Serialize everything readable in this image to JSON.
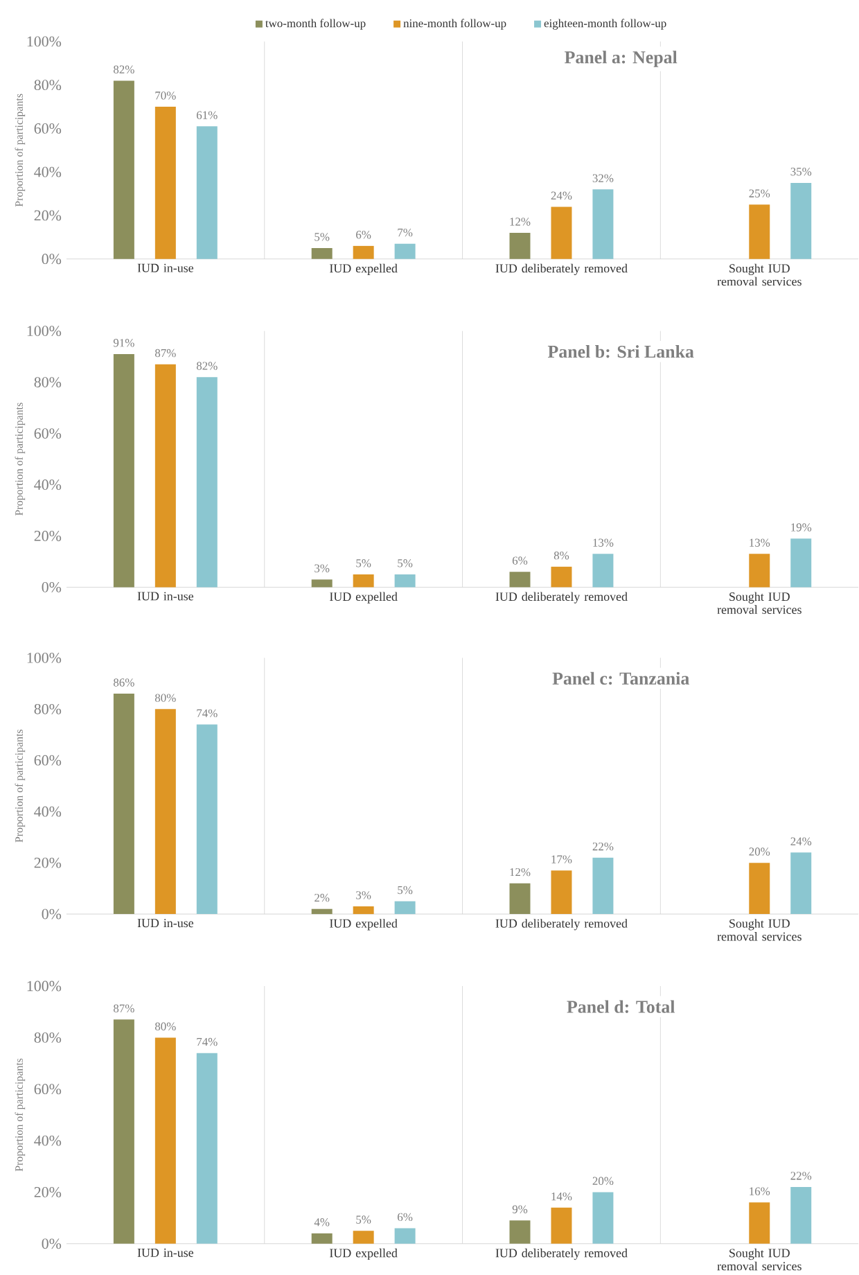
{
  "chart_data": [
    {
      "type": "bar",
      "title": "Panel a: Nepal",
      "ylabel": "Proportion of participants",
      "legend": "top",
      "categories": [
        "IUD in-use",
        "IUD expelled",
        "IUD deliberately removed",
        "Sought IUD removal services"
      ],
      "ylim": [
        0,
        100
      ],
      "yticks": [
        {
          "value": 0,
          "label": "0%"
        },
        {
          "value": 20,
          "label": "20%"
        },
        {
          "value": 40,
          "label": "40%"
        },
        {
          "value": 60,
          "label": "60%"
        },
        {
          "value": 80,
          "label": "80%"
        },
        {
          "value": 100,
          "label": "100%"
        }
      ],
      "series": [
        {
          "name": "two-month follow-up",
          "color": "#8c8f5c",
          "values": [
            82,
            5,
            12,
            null
          ],
          "value_labels": [
            "82%",
            "5%",
            "12%",
            null
          ]
        },
        {
          "name": "nine-month follow-up",
          "color": "#de9625",
          "values": [
            70,
            6,
            24,
            25
          ],
          "value_labels": [
            "70%",
            "6%",
            "24%",
            "25%"
          ]
        },
        {
          "name": "eighteen-month follow-up",
          "color": "#8bc6d0",
          "values": [
            61,
            7,
            32,
            35
          ],
          "value_labels": [
            "61%",
            "7%",
            "32%",
            "35%"
          ]
        }
      ]
    },
    {
      "type": "bar",
      "title": "Panel b: Sri Lanka",
      "ylabel": "Proportion of participants",
      "categories": [
        "IUD in-use",
        "IUD expelled",
        "IUD deliberately removed",
        "Sought IUD removal services"
      ],
      "ylim": [
        0,
        100
      ],
      "yticks": [
        {
          "value": 0,
          "label": "0%"
        },
        {
          "value": 20,
          "label": "20%"
        },
        {
          "value": 40,
          "label": "40%"
        },
        {
          "value": 60,
          "label": "60%"
        },
        {
          "value": 80,
          "label": "80%"
        },
        {
          "value": 100,
          "label": "100%"
        }
      ],
      "series": [
        {
          "color": "#8c8f5c",
          "values": [
            91,
            3,
            6,
            null
          ],
          "value_labels": [
            "91%",
            "3%",
            "6%",
            null
          ]
        },
        {
          "color": "#de9625",
          "values": [
            87,
            5,
            8,
            13
          ],
          "value_labels": [
            "87%",
            "5%",
            "8%",
            "13%"
          ]
        },
        {
          "color": "#8bc6d0",
          "values": [
            82,
            5,
            13,
            19
          ],
          "value_labels": [
            "82%",
            "5%",
            "13%",
            "19%"
          ]
        }
      ]
    },
    {
      "type": "bar",
      "title": "Panel c: Tanzania",
      "ylabel": "Proportion of participants",
      "categories": [
        "IUD in-use",
        "IUD expelled",
        "IUD deliberately removed",
        "Sought IUD removal services"
      ],
      "ylim": [
        0,
        100
      ],
      "yticks": [
        {
          "value": 0,
          "label": "0%"
        },
        {
          "value": 20,
          "label": "20%"
        },
        {
          "value": 40,
          "label": "40%"
        },
        {
          "value": 60,
          "label": "60%"
        },
        {
          "value": 80,
          "label": "80%"
        },
        {
          "value": 100,
          "label": "100%"
        }
      ],
      "series": [
        {
          "color": "#8c8f5c",
          "values": [
            86,
            2,
            12,
            null
          ],
          "value_labels": [
            "86%",
            "2%",
            "12%",
            null
          ]
        },
        {
          "color": "#de9625",
          "values": [
            80,
            3,
            17,
            20
          ],
          "value_labels": [
            "80%",
            "3%",
            "17%",
            "20%"
          ]
        },
        {
          "color": "#8bc6d0",
          "values": [
            74,
            5,
            22,
            24
          ],
          "value_labels": [
            "74%",
            "5%",
            "22%",
            "24%"
          ]
        }
      ]
    },
    {
      "type": "bar",
      "title": "Panel d: Total",
      "ylabel": "Proportion of participants",
      "categories": [
        "IUD in-use",
        "IUD expelled",
        "IUD deliberately removed",
        "Sought IUD removal services"
      ],
      "ylim": [
        0,
        100
      ],
      "yticks": [
        {
          "value": 0,
          "label": "0%"
        },
        {
          "value": 20,
          "label": "20%"
        },
        {
          "value": 40,
          "label": "40%"
        },
        {
          "value": 60,
          "label": "60%"
        },
        {
          "value": 80,
          "label": "80%"
        },
        {
          "value": 100,
          "label": "100%"
        }
      ],
      "series": [
        {
          "color": "#8c8f5c",
          "values": [
            87,
            4,
            9,
            null
          ],
          "value_labels": [
            "87%",
            "4%",
            "9%",
            null
          ]
        },
        {
          "color": "#de9625",
          "values": [
            80,
            5,
            14,
            16
          ],
          "value_labels": [
            "80%",
            "5%",
            "14%",
            "16%"
          ]
        },
        {
          "color": "#8bc6d0",
          "values": [
            74,
            6,
            20,
            22
          ],
          "value_labels": [
            "74%",
            "6%",
            "20%",
            "22%"
          ]
        }
      ]
    }
  ]
}
